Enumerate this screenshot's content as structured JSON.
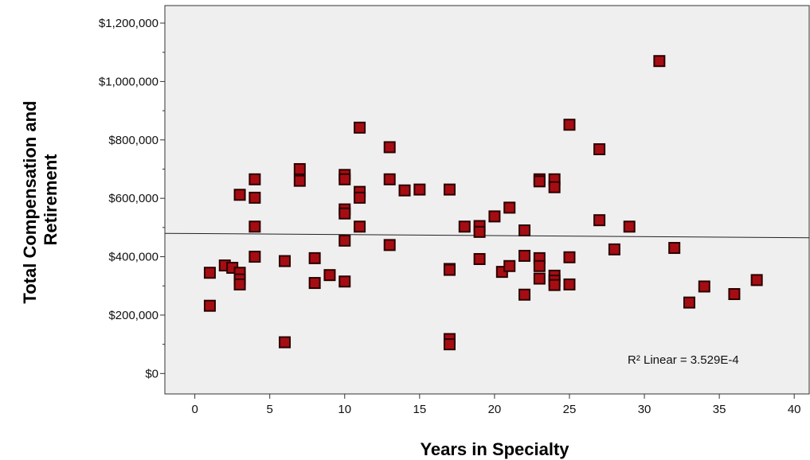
{
  "chart_data": {
    "type": "scatter",
    "title": "",
    "xlabel": "Years in Specialty",
    "ylabel_lines": [
      "Total Compensation and",
      "Retirement"
    ],
    "xlim": [
      -2,
      41
    ],
    "ylim": [
      -70000,
      1260000
    ],
    "x_ticks": [
      0,
      5,
      10,
      15,
      20,
      25,
      30,
      35,
      40
    ],
    "x_tick_labels": [
      "0",
      "5",
      "10",
      "15",
      "20",
      "25",
      "30",
      "35",
      "40"
    ],
    "y_ticks": [
      0,
      200000,
      400000,
      600000,
      800000,
      1000000,
      1200000
    ],
    "y_tick_labels": [
      "$0",
      "$200,000",
      "$400,000",
      "$600,000",
      "$800,000",
      "$1,000,000",
      "$1,200,000"
    ],
    "y_minor_ticks": [
      100000,
      300000,
      500000,
      700000,
      900000,
      1100000
    ],
    "grid": false,
    "background": "#efefef",
    "marker_color": "#a50d12",
    "fit_line": {
      "type": "linear",
      "x": [
        -2,
        41
      ],
      "y": [
        480000,
        465000
      ]
    },
    "annotation": "R² Linear = 3.529E-4",
    "points": [
      [
        1,
        345000
      ],
      [
        1,
        232000
      ],
      [
        2,
        370000
      ],
      [
        2.5,
        362000
      ],
      [
        3,
        612000
      ],
      [
        3,
        345000
      ],
      [
        3,
        322000
      ],
      [
        3,
        305000
      ],
      [
        4,
        665000
      ],
      [
        4,
        602000
      ],
      [
        4,
        503000
      ],
      [
        4,
        400000
      ],
      [
        6,
        385000
      ],
      [
        6,
        107000
      ],
      [
        7,
        700000
      ],
      [
        7,
        660000
      ],
      [
        8,
        395000
      ],
      [
        8,
        310000
      ],
      [
        9,
        337000
      ],
      [
        10,
        680000
      ],
      [
        10,
        665000
      ],
      [
        10,
        562000
      ],
      [
        10,
        548000
      ],
      [
        10,
        455000
      ],
      [
        10,
        315000
      ],
      [
        11,
        842000
      ],
      [
        11,
        622000
      ],
      [
        11,
        602000
      ],
      [
        11,
        503000
      ],
      [
        13,
        775000
      ],
      [
        13,
        665000
      ],
      [
        13,
        440000
      ],
      [
        14,
        627000
      ],
      [
        15,
        630000
      ],
      [
        17,
        630000
      ],
      [
        17,
        358000
      ],
      [
        17,
        355000
      ],
      [
        17,
        118000
      ],
      [
        17,
        100000
      ],
      [
        18,
        503000
      ],
      [
        19,
        505000
      ],
      [
        19,
        485000
      ],
      [
        19,
        392000
      ],
      [
        20,
        538000
      ],
      [
        20.5,
        348000
      ],
      [
        21,
        568000
      ],
      [
        21,
        368000
      ],
      [
        22,
        490000
      ],
      [
        22,
        403000
      ],
      [
        22,
        270000
      ],
      [
        23,
        665000
      ],
      [
        23,
        658000
      ],
      [
        23,
        395000
      ],
      [
        23,
        368000
      ],
      [
        23,
        325000
      ],
      [
        24,
        665000
      ],
      [
        24,
        638000
      ],
      [
        24,
        335000
      ],
      [
        24,
        318000
      ],
      [
        24,
        303000
      ],
      [
        25,
        852000
      ],
      [
        25,
        398000
      ],
      [
        25,
        305000
      ],
      [
        27,
        768000
      ],
      [
        27,
        525000
      ],
      [
        28,
        425000
      ],
      [
        29,
        503000
      ],
      [
        31,
        1070000
      ],
      [
        32,
        430000
      ],
      [
        33,
        243000
      ],
      [
        34,
        298000
      ],
      [
        36,
        272000
      ],
      [
        37.5,
        320000
      ]
    ]
  }
}
